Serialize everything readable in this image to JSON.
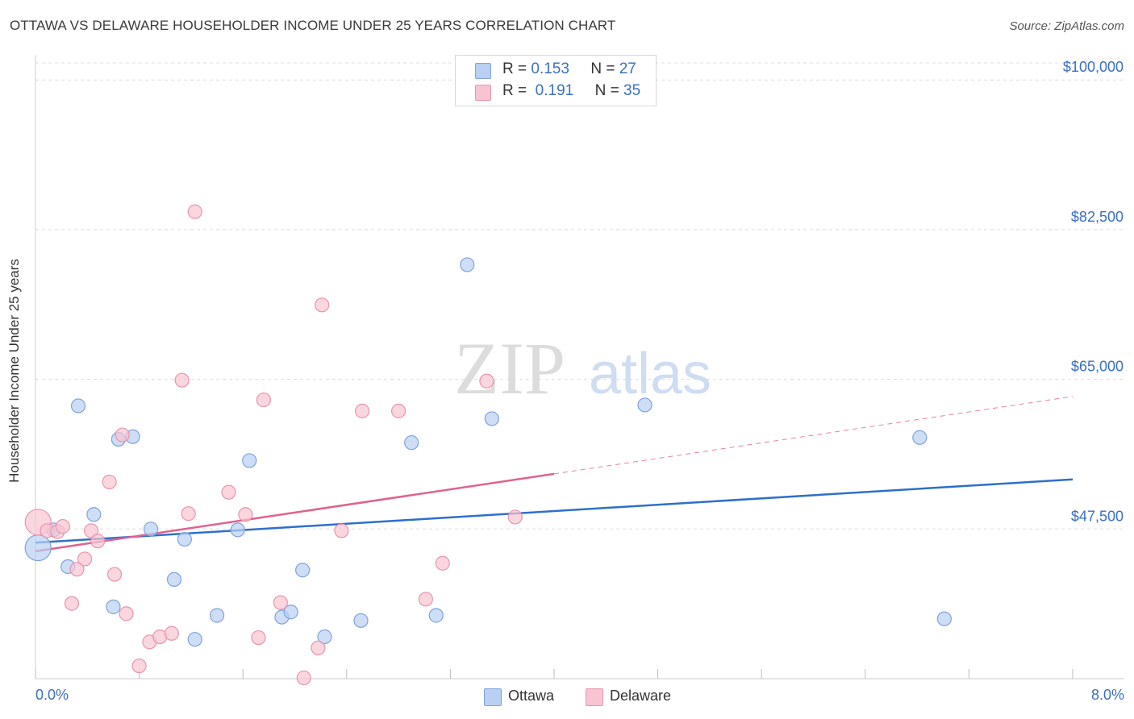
{
  "header": {
    "title": "OTTAWA VS DELAWARE HOUSEHOLDER INCOME UNDER 25 YEARS CORRELATION CHART",
    "source": "Source: ZipAtlas.com"
  },
  "watermark": {
    "zip": "ZIP",
    "atlas": "atlas"
  },
  "legend": {
    "rows": [
      {
        "r_label": "R =",
        "r_value": "0.153",
        "n_label": "N =",
        "n_value": "27"
      },
      {
        "r_label": "R =",
        "r_value": "0.191",
        "n_label": "N =",
        "n_value": "35"
      }
    ]
  },
  "bottom_legend": {
    "ottawa": "Ottawa",
    "delaware": "Delaware"
  },
  "colors": {
    "ottawa_fill": "#b8d0f2",
    "ottawa_stroke": "#7ea3dc",
    "ottawa_line": "#2f6fcb",
    "delaware_fill": "#f8c4d2",
    "delaware_stroke": "#ea93ad",
    "delaware_line": "#e0628d",
    "axis_text": "#3a6fc4",
    "grid": "#dddddd"
  },
  "chart_data": {
    "type": "scatter",
    "title": "OTTAWA VS DELAWARE HOUSEHOLDER INCOME UNDER 25 YEARS CORRELATION CHART",
    "xlabel": "",
    "ylabel": "Householder Income Under 25 years",
    "xlim": [
      0.0,
      8.0
    ],
    "ylim": [
      30000,
      102000
    ],
    "x_tick_labels": [
      "0.0%",
      "8.0%"
    ],
    "y_ticks": [
      47500,
      65000,
      82500,
      100000
    ],
    "y_tick_labels": [
      "$47,500",
      "$65,000",
      "$82,500",
      "$100,000"
    ],
    "series": [
      {
        "name": "Ottawa",
        "r": 0.153,
        "n": 27,
        "trend": {
          "x": [
            0.0,
            8.0
          ],
          "y": [
            45900,
            53300
          ],
          "solid_to": 8.0
        },
        "points": [
          {
            "x": 0.02,
            "y": 45300,
            "size": "large"
          },
          {
            "x": 0.14,
            "y": 47400
          },
          {
            "x": 0.25,
            "y": 43100
          },
          {
            "x": 0.33,
            "y": 61900
          },
          {
            "x": 0.45,
            "y": 49200
          },
          {
            "x": 0.6,
            "y": 38400
          },
          {
            "x": 0.64,
            "y": 58000
          },
          {
            "x": 0.75,
            "y": 58300
          },
          {
            "x": 0.89,
            "y": 47500
          },
          {
            "x": 1.07,
            "y": 41600
          },
          {
            "x": 1.15,
            "y": 46300
          },
          {
            "x": 1.23,
            "y": 34600
          },
          {
            "x": 1.4,
            "y": 37400
          },
          {
            "x": 1.56,
            "y": 47400
          },
          {
            "x": 1.65,
            "y": 55500
          },
          {
            "x": 1.9,
            "y": 37200
          },
          {
            "x": 1.97,
            "y": 37800
          },
          {
            "x": 2.06,
            "y": 42700
          },
          {
            "x": 2.23,
            "y": 34900
          },
          {
            "x": 2.51,
            "y": 36800
          },
          {
            "x": 2.9,
            "y": 57600
          },
          {
            "x": 3.09,
            "y": 37400
          },
          {
            "x": 3.33,
            "y": 78400
          },
          {
            "x": 3.52,
            "y": 60400
          },
          {
            "x": 4.7,
            "y": 62000
          },
          {
            "x": 6.82,
            "y": 58200
          },
          {
            "x": 7.01,
            "y": 37000
          }
        ]
      },
      {
        "name": "Delaware",
        "r": 0.191,
        "n": 35,
        "trend": {
          "x": [
            0.0,
            8.0
          ],
          "y": [
            44900,
            63000
          ],
          "solid_to": 4.0
        },
        "points": [
          {
            "x": 0.02,
            "y": 48300,
            "size": "large"
          },
          {
            "x": 0.09,
            "y": 47300
          },
          {
            "x": 0.17,
            "y": 47200
          },
          {
            "x": 0.21,
            "y": 47800
          },
          {
            "x": 0.28,
            "y": 38800
          },
          {
            "x": 0.32,
            "y": 42800
          },
          {
            "x": 0.38,
            "y": 44000
          },
          {
            "x": 0.43,
            "y": 47300
          },
          {
            "x": 0.48,
            "y": 46100
          },
          {
            "x": 0.57,
            "y": 53000
          },
          {
            "x": 0.61,
            "y": 42200
          },
          {
            "x": 0.67,
            "y": 58500
          },
          {
            "x": 0.7,
            "y": 37600
          },
          {
            "x": 0.8,
            "y": 31500
          },
          {
            "x": 0.88,
            "y": 34300
          },
          {
            "x": 0.96,
            "y": 34900
          },
          {
            "x": 1.05,
            "y": 35300
          },
          {
            "x": 1.13,
            "y": 64900
          },
          {
            "x": 1.18,
            "y": 49300
          },
          {
            "x": 1.23,
            "y": 84600
          },
          {
            "x": 1.49,
            "y": 51800
          },
          {
            "x": 1.62,
            "y": 49200
          },
          {
            "x": 1.72,
            "y": 34800
          },
          {
            "x": 1.76,
            "y": 62600
          },
          {
            "x": 1.89,
            "y": 38900
          },
          {
            "x": 2.07,
            "y": 30100
          },
          {
            "x": 2.18,
            "y": 33600
          },
          {
            "x": 2.21,
            "y": 73700
          },
          {
            "x": 2.36,
            "y": 47300
          },
          {
            "x": 2.52,
            "y": 61300
          },
          {
            "x": 2.8,
            "y": 61300
          },
          {
            "x": 3.01,
            "y": 39300
          },
          {
            "x": 3.14,
            "y": 43500
          },
          {
            "x": 3.48,
            "y": 64800
          },
          {
            "x": 3.7,
            "y": 48900
          }
        ]
      }
    ]
  }
}
